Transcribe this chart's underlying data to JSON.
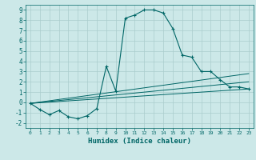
{
  "xlabel": "Humidex (Indice chaleur)",
  "bg_color": "#cce8e8",
  "line_color": "#006666",
  "grid_color": "#aacccc",
  "xlim": [
    -0.5,
    23.5
  ],
  "ylim": [
    -2.5,
    9.5
  ],
  "xticks": [
    0,
    1,
    2,
    3,
    4,
    5,
    6,
    7,
    8,
    9,
    10,
    11,
    12,
    13,
    14,
    15,
    16,
    17,
    18,
    19,
    20,
    21,
    22,
    23
  ],
  "yticks": [
    -2,
    -1,
    0,
    1,
    2,
    3,
    4,
    5,
    6,
    7,
    8,
    9
  ],
  "main_x": [
    0,
    1,
    2,
    3,
    4,
    5,
    6,
    7,
    8,
    9,
    10,
    11,
    12,
    13,
    14,
    15,
    16,
    17,
    18,
    19,
    20,
    21,
    22,
    23
  ],
  "main_y": [
    -0.1,
    -0.7,
    -1.2,
    -0.8,
    -1.4,
    -1.6,
    -1.3,
    -0.6,
    3.5,
    1.1,
    8.2,
    8.5,
    9.0,
    9.0,
    8.7,
    7.2,
    4.6,
    4.4,
    3.0,
    3.0,
    2.2,
    1.5,
    1.5,
    1.3
  ],
  "line1_x": [
    0,
    23
  ],
  "line1_y": [
    -0.1,
    1.3
  ],
  "line2_x": [
    0,
    23
  ],
  "line2_y": [
    -0.1,
    2.0
  ],
  "line3_x": [
    0,
    23
  ],
  "line3_y": [
    -0.1,
    2.8
  ]
}
